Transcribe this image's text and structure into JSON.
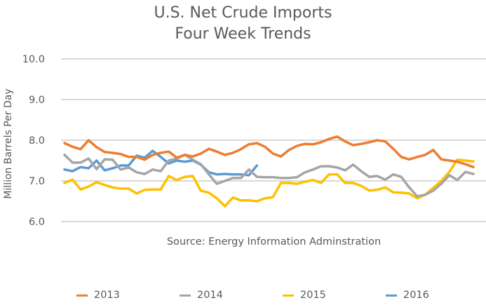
{
  "chart_data": {
    "type": "line",
    "title": [
      "U.S. Net Crude Imports",
      "Four Week Trends"
    ],
    "xlabel": "",
    "ylabel": "Million Barrels Per Day",
    "ylim": [
      6.0,
      10.0
    ],
    "yticks": [
      "6.0",
      "7.0",
      "8.0",
      "9.0",
      "10.0"
    ],
    "ytick_values": [
      6.0,
      7.0,
      8.0,
      9.0,
      10.0
    ],
    "grid": true,
    "legend_position": "bottom",
    "num_weeks": 52,
    "annotation": "Source: Energy Information Adminstration",
    "series": [
      {
        "name": "2013",
        "color": "#ED7D31",
        "values": [
          7.93,
          7.84,
          7.78,
          8.0,
          7.83,
          7.71,
          7.69,
          7.66,
          7.59,
          7.59,
          7.52,
          7.64,
          7.69,
          7.72,
          7.57,
          7.64,
          7.6,
          7.67,
          7.79,
          7.72,
          7.64,
          7.69,
          7.78,
          7.9,
          7.93,
          7.84,
          7.67,
          7.6,
          7.76,
          7.86,
          7.91,
          7.9,
          7.95,
          8.03,
          8.09,
          7.97,
          7.88,
          7.91,
          7.95,
          8.0,
          7.97,
          7.79,
          7.59,
          7.53,
          7.59,
          7.64,
          7.76,
          7.53,
          7.5,
          7.47,
          7.41,
          7.34
        ]
      },
      {
        "name": "2014",
        "color": "#A5A5A5",
        "values": [
          7.64,
          7.45,
          7.45,
          7.55,
          7.29,
          7.53,
          7.52,
          7.28,
          7.33,
          7.21,
          7.17,
          7.28,
          7.24,
          7.5,
          7.55,
          7.64,
          7.52,
          7.41,
          7.16,
          6.93,
          7.0,
          7.07,
          7.07,
          7.28,
          7.1,
          7.09,
          7.09,
          7.07,
          7.07,
          7.09,
          7.21,
          7.28,
          7.36,
          7.36,
          7.33,
          7.26,
          7.4,
          7.24,
          7.1,
          7.12,
          7.03,
          7.16,
          7.1,
          6.84,
          6.62,
          6.66,
          6.76,
          6.93,
          7.14,
          7.02,
          7.22,
          7.17
        ]
      },
      {
        "name": "2015",
        "color": "#FFC000",
        "values": [
          6.95,
          7.03,
          6.79,
          6.86,
          6.97,
          6.9,
          6.84,
          6.81,
          6.81,
          6.69,
          6.78,
          6.79,
          6.79,
          7.12,
          7.02,
          7.1,
          7.12,
          6.76,
          6.71,
          6.57,
          6.38,
          6.59,
          6.52,
          6.52,
          6.5,
          6.57,
          6.6,
          6.95,
          6.95,
          6.93,
          6.98,
          7.02,
          6.95,
          7.16,
          7.16,
          6.95,
          6.95,
          6.88,
          6.76,
          6.78,
          6.84,
          6.72,
          6.71,
          6.69,
          6.57,
          6.66,
          6.83,
          7.0,
          7.22,
          7.52,
          7.5,
          7.48
        ]
      },
      {
        "name": "2016",
        "color": "#5B9BD5",
        "values": [
          7.28,
          7.24,
          7.34,
          7.31,
          7.5,
          7.26,
          7.31,
          7.38,
          7.38,
          7.62,
          7.57,
          7.74,
          7.59,
          7.43,
          7.5,
          7.47,
          7.5,
          7.4,
          7.21,
          7.16,
          7.17,
          7.16,
          7.16,
          7.14,
          7.38
        ]
      }
    ]
  }
}
